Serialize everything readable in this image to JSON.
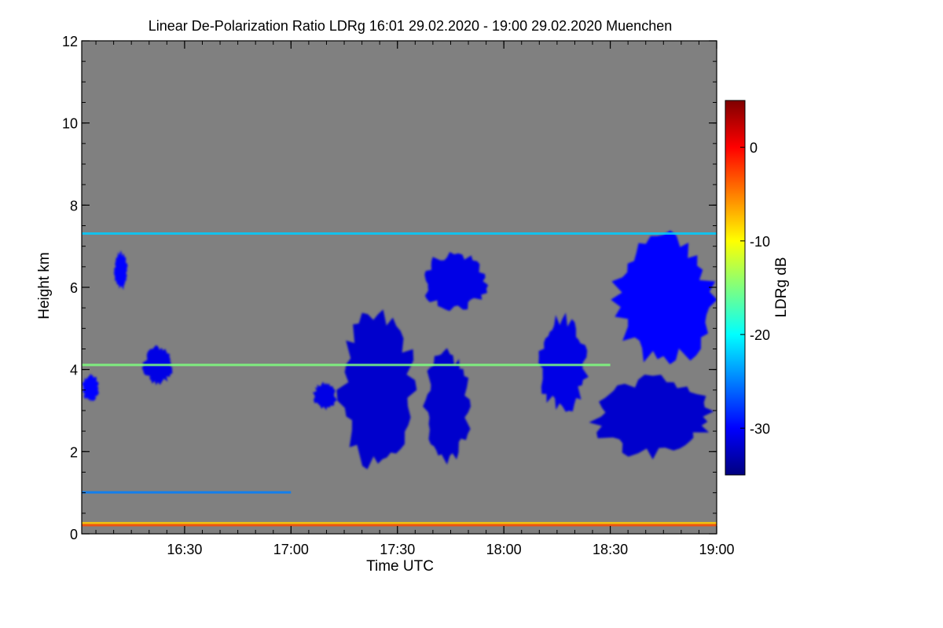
{
  "chart_data": {
    "type": "heatmap",
    "title": "Linear De-Polarization Ratio LDRg   16:01 29.02.2020 - 19:00 29.02.2020 Muenchen",
    "xlabel": "Time UTC",
    "ylabel": "Height km",
    "xlim": [
      "16:01",
      "19:00"
    ],
    "ylim": [
      0,
      12
    ],
    "x_ticks": [
      "16:30",
      "17:00",
      "17:30",
      "18:00",
      "18:30",
      "19:00"
    ],
    "y_ticks": [
      "0",
      "2",
      "4",
      "6",
      "8",
      "10",
      "12"
    ],
    "background_color": "#808080",
    "colorbar": {
      "label": "LDRg dB",
      "range": [
        -35,
        5
      ],
      "ticks": [
        "0",
        "-10",
        "-20",
        "-30"
      ],
      "colormap": [
        "#00007f",
        "#0000ff",
        "#007fff",
        "#00ffff",
        "#7fff7f",
        "#ffff00",
        "#ff7f00",
        "#ff0000",
        "#7f0000"
      ]
    },
    "layers": [
      {
        "time_start": "16:01",
        "time_end": "19:00",
        "height_km": 7.3,
        "ldr_db": -22
      },
      {
        "time_start": "16:01",
        "time_end": "19:00",
        "height_km": 0.25,
        "ldr_db": -8
      },
      {
        "time_start": "16:01",
        "time_end": "19:00",
        "height_km": 0.2,
        "ldr_db": -3
      },
      {
        "time_start": "16:01",
        "time_end": "17:00",
        "height_km": 1.0,
        "ldr_db": -25
      },
      {
        "time_start": "16:01",
        "time_end": "18:30",
        "height_km": 4.1,
        "ldr_db": -15
      }
    ],
    "regions": [
      {
        "time_start": "16:01",
        "time_end": "16:06",
        "height_bottom_km": 3.2,
        "height_top_km": 3.9,
        "ldr_db": -30
      },
      {
        "time_start": "16:10",
        "time_end": "16:14",
        "height_bottom_km": 5.9,
        "height_top_km": 6.9,
        "ldr_db": -30
      },
      {
        "time_start": "16:18",
        "time_end": "16:27",
        "height_bottom_km": 3.6,
        "height_top_km": 4.6,
        "ldr_db": -31
      },
      {
        "time_start": "17:06",
        "time_end": "17:13",
        "height_bottom_km": 3.0,
        "height_top_km": 3.7,
        "ldr_db": -31
      },
      {
        "time_start": "17:13",
        "time_end": "17:36",
        "height_bottom_km": 1.5,
        "height_top_km": 5.5,
        "ldr_db": -32
      },
      {
        "time_start": "17:36",
        "time_end": "17:56",
        "height_bottom_km": 5.4,
        "height_top_km": 6.9,
        "ldr_db": -31
      },
      {
        "time_start": "17:37",
        "time_end": "17:51",
        "height_bottom_km": 1.7,
        "height_top_km": 4.5,
        "ldr_db": -32
      },
      {
        "time_start": "18:09",
        "time_end": "18:24",
        "height_bottom_km": 2.9,
        "height_top_km": 5.4,
        "ldr_db": -31
      },
      {
        "time_start": "18:24",
        "time_end": "19:00",
        "height_bottom_km": 1.8,
        "height_top_km": 3.9,
        "ldr_db": -32
      },
      {
        "time_start": "18:30",
        "time_end": "19:00",
        "height_bottom_km": 4.0,
        "height_top_km": 7.4,
        "ldr_db": -30
      }
    ]
  }
}
